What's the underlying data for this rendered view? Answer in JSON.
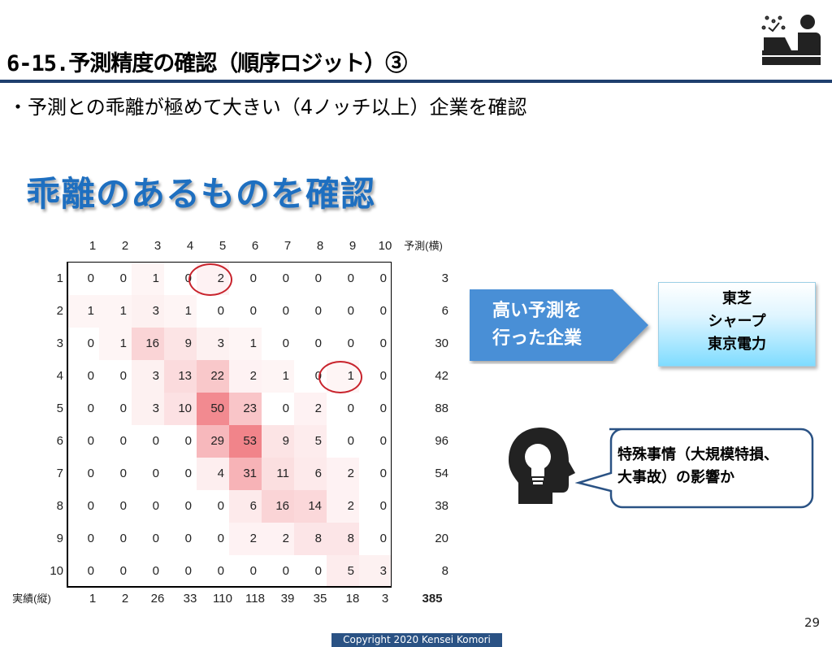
{
  "slide": {
    "title": "6-15.予測精度の確認（順序ロジット）③",
    "bullet": "・予測との乖離が極めて大きい（4ノッチ以上）企業を確認",
    "headline": "乖離のあるものを確認",
    "page_number": "29",
    "footer": "Copyright  2020  Kensei Komori"
  },
  "matrix": {
    "col_headers": [
      "1",
      "2",
      "3",
      "4",
      "5",
      "6",
      "7",
      "8",
      "9",
      "10"
    ],
    "col_axis_label": "予測(横)",
    "row_axis_label": "実績(縦)",
    "rows": [
      {
        "label": "1",
        "values": [
          0,
          0,
          1,
          0,
          2,
          0,
          0,
          0,
          0,
          0
        ],
        "total": "3"
      },
      {
        "label": "2",
        "values": [
          1,
          1,
          3,
          1,
          0,
          0,
          0,
          0,
          0,
          0
        ],
        "total": "6"
      },
      {
        "label": "3",
        "values": [
          0,
          1,
          16,
          9,
          3,
          1,
          0,
          0,
          0,
          0
        ],
        "total": "30"
      },
      {
        "label": "4",
        "values": [
          0,
          0,
          3,
          13,
          22,
          2,
          1,
          0,
          1,
          0
        ],
        "total": "42"
      },
      {
        "label": "5",
        "values": [
          0,
          0,
          3,
          10,
          50,
          23,
          0,
          2,
          0,
          0
        ],
        "total": "88"
      },
      {
        "label": "6",
        "values": [
          0,
          0,
          0,
          0,
          29,
          53,
          9,
          5,
          0,
          0
        ],
        "total": "96"
      },
      {
        "label": "7",
        "values": [
          0,
          0,
          0,
          0,
          4,
          31,
          11,
          6,
          2,
          0
        ],
        "total": "54"
      },
      {
        "label": "8",
        "values": [
          0,
          0,
          0,
          0,
          0,
          6,
          16,
          14,
          2,
          0
        ],
        "total": "38"
      },
      {
        "label": "9",
        "values": [
          0,
          0,
          0,
          0,
          0,
          2,
          2,
          8,
          8,
          0
        ],
        "total": "20"
      },
      {
        "label": "10",
        "values": [
          0,
          0,
          0,
          0,
          0,
          0,
          0,
          0,
          5,
          3
        ],
        "total": "8"
      }
    ],
    "col_totals": [
      "1",
      "2",
      "26",
      "33",
      "110",
      "118",
      "39",
      "35",
      "18",
      "3"
    ],
    "grand_total": "385",
    "highlight_color": "#c8232c",
    "heat_color": "#e8323c"
  },
  "callout": {
    "arrow_label_line1": "高い予測を",
    "arrow_label_line2": "行った企業",
    "companies": [
      "東芝",
      "シャープ",
      "東京電力"
    ],
    "bubble_line1": "特殊事情（大規模特損、",
    "bubble_line2": "大事故）の影響か",
    "arrow_color": "#4a8fd6"
  }
}
